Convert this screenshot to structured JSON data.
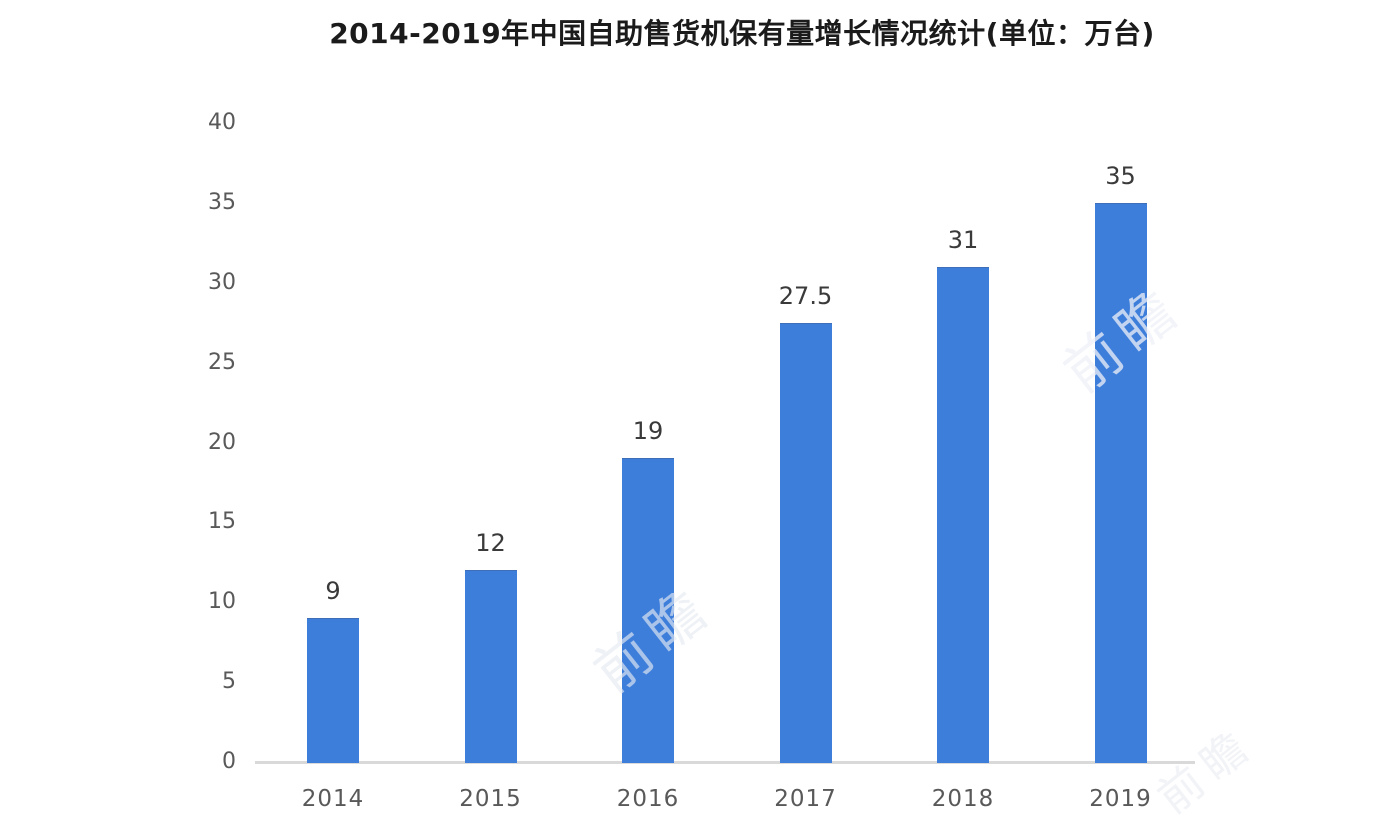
{
  "watermark": {
    "text": "前瞻"
  },
  "colors": {
    "bar": "#3E7EDB",
    "axis_line": "#D9D9D9",
    "tick_label": "#595959",
    "value_label": "#3A3A3A",
    "title": "#1B1B1B"
  },
  "chart_data": {
    "type": "bar",
    "title": "2014-2019年中国自助售货机保有量增长情况统计(单位：万台)",
    "unit": "万台",
    "categories": [
      "2014",
      "2015",
      "2016",
      "2017",
      "2018",
      "2019"
    ],
    "values": [
      9,
      12,
      19,
      27.5,
      31,
      35
    ],
    "value_labels": [
      "9",
      "12",
      "19",
      "27.5",
      "31",
      "35"
    ],
    "xlabel": "",
    "ylabel": "",
    "ylim": [
      0,
      40
    ],
    "yticks": [
      0,
      5,
      10,
      15,
      20,
      25,
      30,
      35,
      40
    ],
    "grid": false,
    "legend": false,
    "bar_color": "#3E7EDB"
  }
}
